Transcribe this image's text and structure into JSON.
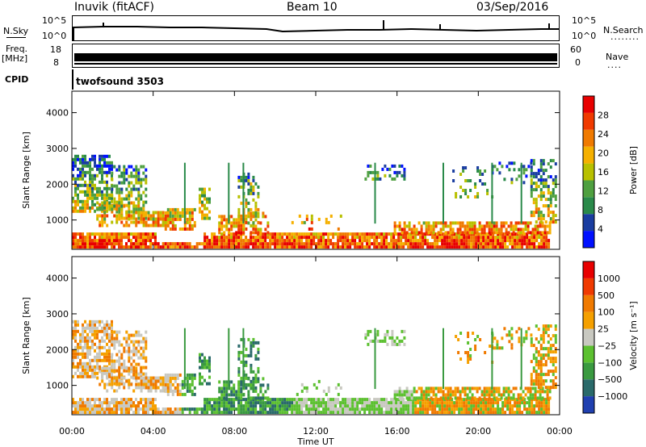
{
  "header": {
    "station": "Inuvik (fitACF)",
    "beam": "Beam 10",
    "date": "03/Sep/2016"
  },
  "strips": {
    "nsky_label": "N.Sky",
    "nsky_ticks": [
      "10^5",
      "10^0"
    ],
    "nsearch_label": "N.Search",
    "nsearch_ticks": [
      "10^5",
      "10^0"
    ],
    "nsearch_dots": "........",
    "freq_label": "Freq.",
    "freq_unit": "[MHz]",
    "freq_ticks": [
      "18",
      "8"
    ],
    "nave_label": "Nave",
    "nave_ticks": [
      "60",
      "0"
    ],
    "nave_dots": "....",
    "cpid_label": "CPID",
    "cpid_value": "twofsound 3503"
  },
  "colors": {
    "power": [
      "#0010ff",
      "#1a3da0",
      "#2a8a4a",
      "#4fa040",
      "#b8c000",
      "#f5b000",
      "#f07a00",
      "#f03a00",
      "#e80000"
    ],
    "velocity": [
      "#e80000",
      "#f03a00",
      "#f07a00",
      "#f5a000",
      "#c8c8c0",
      "#5cc030",
      "#3a9a40",
      "#2a6a6a",
      "#2040b0"
    ]
  },
  "chart_data": [
    {
      "type": "heatmap",
      "title": "",
      "xlabel": "",
      "ylabel": "Slant Range [km]",
      "x_ticks": [
        "00:00",
        "04:00",
        "08:00",
        "12:00",
        "16:00",
        "20:00",
        "00:00"
      ],
      "y_ticks": [
        "1000",
        "2000",
        "3000",
        "4000"
      ],
      "ylim": [
        180,
        4600
      ],
      "colorbar_label": "Power [dB]",
      "colorbar_ticks": [
        "4",
        "8",
        "12",
        "16",
        "20",
        "24",
        "28"
      ],
      "zlim": [
        0,
        30
      ]
    },
    {
      "type": "heatmap",
      "title": "",
      "xlabel": "Time UT",
      "ylabel": "Slant Range [km]",
      "x_ticks": [
        "00:00",
        "04:00",
        "08:00",
        "12:00",
        "16:00",
        "20:00",
        "00:00"
      ],
      "y_ticks": [
        "1000",
        "2000",
        "3000",
        "4000"
      ],
      "ylim": [
        180,
        4600
      ],
      "colorbar_label": "Velocity [m s⁻¹]",
      "colorbar_ticks": [
        "1000",
        "500",
        "100",
        "25",
        "−25",
        "−100",
        "−500",
        "−1000"
      ],
      "zlim": [
        -1200,
        1200
      ]
    }
  ]
}
